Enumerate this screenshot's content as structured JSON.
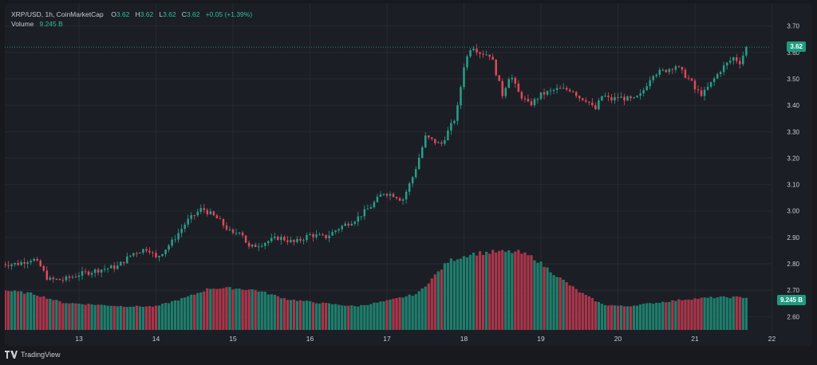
{
  "legend": {
    "symbol": "XRP/USD, 1h, CoinMarketCap",
    "o_label": "O",
    "o_value": "3.62",
    "h_label": "H",
    "h_value": "3.62",
    "l_label": "L",
    "l_value": "3.62",
    "c_label": "C",
    "c_value": "3.62",
    "change": "+0.05 (+1.39%)",
    "volume_label": "Volume",
    "volume_value": "9.245 B"
  },
  "price_tag": "3.62",
  "volume_tag": "9.245 B",
  "branding": "TradingView",
  "colors": {
    "up": "#26a08a",
    "down": "#e0495a",
    "up_volume": "#1f7d6c",
    "down_volume": "#a8364a",
    "price_tag_bg": "#1f9a7f",
    "grid": "#262930",
    "axis_text": "#c9ccd3"
  },
  "chart_data": {
    "type": "candlestick",
    "x_tick_labels": [
      "13",
      "14",
      "15",
      "16",
      "17",
      "18",
      "19",
      "20",
      "21",
      "22"
    ],
    "y_tick_labels": [
      "2.60",
      "2.70",
      "2.80",
      "2.90",
      "3.00",
      "3.10",
      "3.20",
      "3.30",
      "3.40",
      "3.50",
      "3.60",
      "3.70"
    ],
    "ylim": [
      2.58,
      3.72
    ],
    "last_price": 3.62,
    "grid": true,
    "close_path": [
      [
        12.0,
        2.8
      ],
      [
        12.2,
        2.8
      ],
      [
        12.4,
        2.82
      ],
      [
        12.5,
        2.79
      ],
      [
        12.6,
        2.74
      ],
      [
        12.8,
        2.74
      ],
      [
        13.0,
        2.76
      ],
      [
        13.3,
        2.78
      ],
      [
        13.5,
        2.79
      ],
      [
        13.7,
        2.84
      ],
      [
        13.9,
        2.86
      ],
      [
        14.0,
        2.82
      ],
      [
        14.2,
        2.88
      ],
      [
        14.4,
        2.96
      ],
      [
        14.6,
        3.01
      ],
      [
        14.8,
        2.97
      ],
      [
        15.0,
        2.91
      ],
      [
        15.1,
        2.93
      ],
      [
        15.2,
        2.86
      ],
      [
        15.4,
        2.88
      ],
      [
        15.6,
        2.9
      ],
      [
        15.8,
        2.88
      ],
      [
        16.0,
        2.91
      ],
      [
        16.2,
        2.9
      ],
      [
        16.4,
        2.94
      ],
      [
        16.6,
        2.97
      ],
      [
        16.8,
        3.02
      ],
      [
        16.95,
        3.07
      ],
      [
        17.1,
        3.06
      ],
      [
        17.2,
        3.04
      ],
      [
        17.35,
        3.14
      ],
      [
        17.5,
        3.28
      ],
      [
        17.7,
        3.25
      ],
      [
        17.9,
        3.36
      ],
      [
        18.0,
        3.55
      ],
      [
        18.1,
        3.63
      ],
      [
        18.2,
        3.6
      ],
      [
        18.35,
        3.59
      ],
      [
        18.5,
        3.44
      ],
      [
        18.6,
        3.52
      ],
      [
        18.7,
        3.45
      ],
      [
        18.85,
        3.4
      ],
      [
        19.0,
        3.44
      ],
      [
        19.2,
        3.46
      ],
      [
        19.4,
        3.46
      ],
      [
        19.5,
        3.43
      ],
      [
        19.6,
        3.42
      ],
      [
        19.7,
        3.38
      ],
      [
        19.8,
        3.44
      ],
      [
        19.9,
        3.42
      ],
      [
        20.0,
        3.43
      ],
      [
        20.2,
        3.42
      ],
      [
        20.3,
        3.44
      ],
      [
        20.45,
        3.52
      ],
      [
        20.6,
        3.53
      ],
      [
        20.75,
        3.55
      ],
      [
        20.85,
        3.52
      ],
      [
        20.95,
        3.49
      ],
      [
        21.0,
        3.46
      ],
      [
        21.1,
        3.44
      ],
      [
        21.2,
        3.48
      ],
      [
        21.35,
        3.54
      ],
      [
        21.5,
        3.58
      ],
      [
        21.6,
        3.56
      ],
      [
        21.65,
        3.62
      ]
    ],
    "volume_profile": [
      [
        12.0,
        0.22
      ],
      [
        12.4,
        0.2
      ],
      [
        12.8,
        0.15
      ],
      [
        13.2,
        0.14
      ],
      [
        13.6,
        0.13
      ],
      [
        14.0,
        0.13
      ],
      [
        14.4,
        0.18
      ],
      [
        14.7,
        0.23
      ],
      [
        15.0,
        0.23
      ],
      [
        15.3,
        0.22
      ],
      [
        15.7,
        0.17
      ],
      [
        16.1,
        0.15
      ],
      [
        16.6,
        0.13
      ],
      [
        17.0,
        0.16
      ],
      [
        17.4,
        0.2
      ],
      [
        17.8,
        0.38
      ],
      [
        18.1,
        0.42
      ],
      [
        18.4,
        0.43
      ],
      [
        18.7,
        0.43
      ],
      [
        18.9,
        0.4
      ],
      [
        19.2,
        0.3
      ],
      [
        19.5,
        0.21
      ],
      [
        19.8,
        0.14
      ],
      [
        20.1,
        0.13
      ],
      [
        20.5,
        0.15
      ],
      [
        20.9,
        0.17
      ],
      [
        21.3,
        0.18
      ],
      [
        21.65,
        0.18
      ]
    ]
  }
}
